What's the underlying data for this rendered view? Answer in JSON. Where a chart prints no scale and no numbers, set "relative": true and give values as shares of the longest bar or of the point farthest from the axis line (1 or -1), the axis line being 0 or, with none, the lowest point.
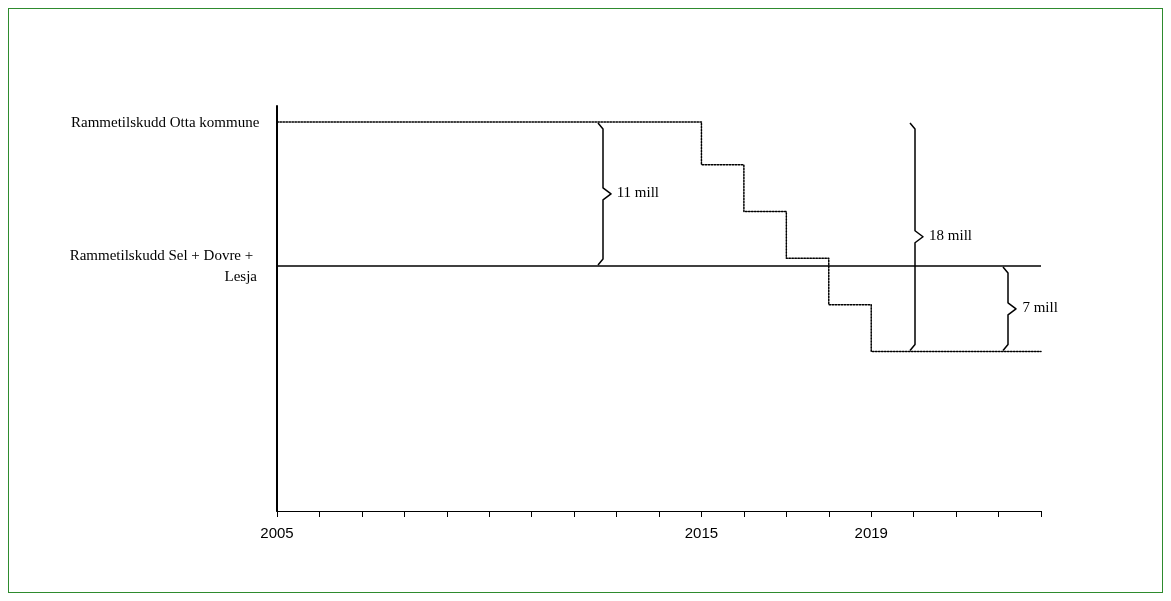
{
  "chart_data": {
    "type": "step",
    "relative": true,
    "x": [
      2005,
      2015,
      2016,
      2017,
      2018,
      2019,
      2023
    ],
    "series": [
      {
        "name": "Rammetilskudd Otta kommune",
        "color": "#000000",
        "values": [
          1,
          0.89,
          0.77,
          0.65,
          0.53,
          0.41,
          0.41
        ]
      }
    ],
    "line_style": "dotted",
    "marker": "none",
    "xlim": [
      2005,
      2023
    ],
    "xticks": [
      2005,
      {
        "value": 2006,
        "label": null
      },
      {
        "value": 2007,
        "label": null
      },
      {
        "value": 2008,
        "label": null
      },
      {
        "value": 2009,
        "label": null
      },
      {
        "value": 2010,
        "label": null
      },
      {
        "value": 2011,
        "label": null
      },
      {
        "value": 2012,
        "label": null
      },
      {
        "value": 2013,
        "label": null
      },
      {
        "value": 2014,
        "label": null
      },
      2015,
      {
        "value": 2016,
        "label": null
      },
      {
        "value": 2017,
        "label": null
      },
      {
        "value": 2018,
        "label": null
      },
      2019,
      {
        "value": 2020,
        "label": null
      },
      {
        "value": 2021,
        "label": null
      },
      {
        "value": 2022,
        "label": null
      },
      {
        "value": 2023,
        "label": null
      }
    ],
    "ref_lines": [
      {
        "axis": "y",
        "value": 0.63,
        "label": "Rammetilskudd Sel + Dovre + Lesja",
        "color": "#000000",
        "line_style": "solid"
      }
    ],
    "annotations": [
      "11 mill",
      "18 mill",
      "7 mill"
    ],
    "grid": false,
    "legend": false
  }
}
